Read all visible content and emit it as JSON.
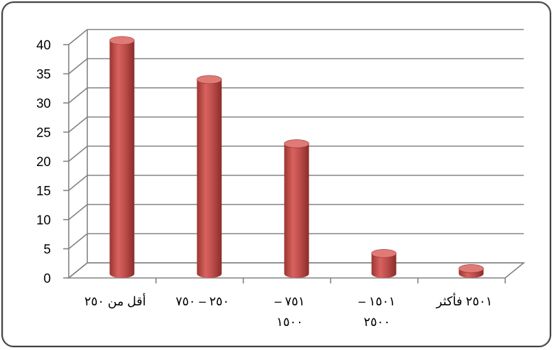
{
  "chart_data": {
    "type": "bar",
    "style": "3d-cylinder",
    "categories": [
      [
        "أقل من ٢٥٠"
      ],
      [
        "٢٥٠ – ٧٥٠"
      ],
      [
        "٧٥١ –",
        "١٥٠٠"
      ],
      [
        "١٥٠١ –",
        "٢٥٠٠"
      ],
      [
        "٢٥٠١ فأكثر"
      ]
    ],
    "values": [
      40,
      33.3,
      22.3,
      3.5,
      0.9
    ],
    "ylim": [
      0,
      40
    ],
    "yticks": [
      "0",
      "5",
      "10",
      "15",
      "20",
      "25",
      "30",
      "35",
      "40"
    ],
    "grid": true,
    "legend": "none",
    "title": "",
    "xlabel": "",
    "ylabel": "",
    "colors": {
      "bar": "#c0504d",
      "bar_dark": "#8e2f2d",
      "bar_light": "#e07a77",
      "grid": "#808080",
      "frame": "#404040"
    }
  }
}
